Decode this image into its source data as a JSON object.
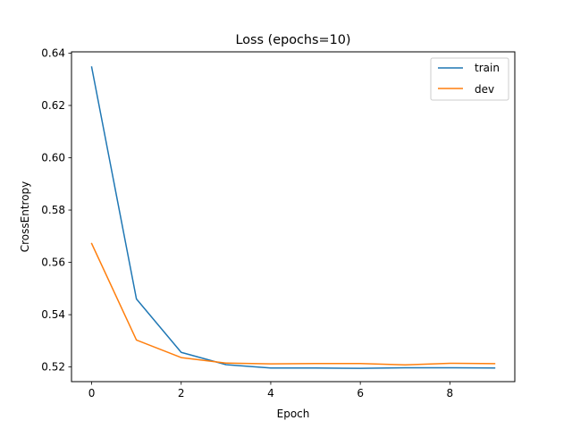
{
  "chart_data": {
    "type": "line",
    "title": "Loss (epochs=10)",
    "xlabel": "Epoch",
    "ylabel": "CrossEntropy",
    "x": [
      0,
      1,
      2,
      3,
      4,
      5,
      6,
      7,
      8,
      9
    ],
    "xlim": [
      -0.45,
      9.45
    ],
    "ylim": [
      0.5144,
      0.6405
    ],
    "xticks": [
      0,
      2,
      4,
      6,
      8
    ],
    "yticks": [
      0.52,
      0.54,
      0.56,
      0.58,
      0.6,
      0.62,
      0.64
    ],
    "ytick_labels": [
      "0.52",
      "0.54",
      "0.56",
      "0.58",
      "0.60",
      "0.62",
      "0.64"
    ],
    "grid": false,
    "legend_position": "top-right",
    "series": [
      {
        "name": "train",
        "color": "#1f77b4",
        "values": [
          0.6347,
          0.546,
          0.5256,
          0.5209,
          0.5196,
          0.5196,
          0.5195,
          0.5197,
          0.5197,
          0.5196
        ]
      },
      {
        "name": "dev",
        "color": "#ff7f0e",
        "values": [
          0.5672,
          0.5303,
          0.5236,
          0.5215,
          0.5212,
          0.5213,
          0.5213,
          0.5208,
          0.5214,
          0.5213
        ]
      }
    ]
  }
}
